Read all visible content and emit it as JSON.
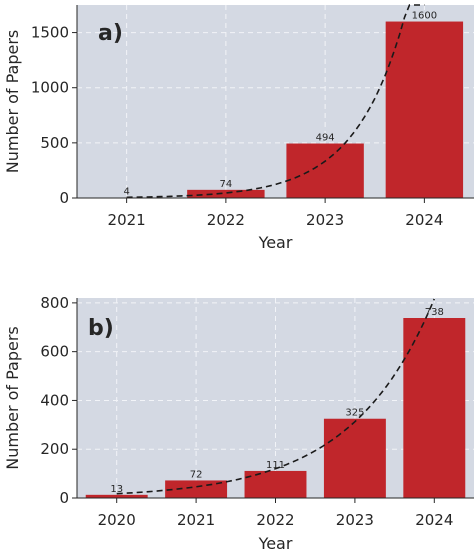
{
  "chart_data": [
    {
      "type": "bar",
      "panel_label": "a)",
      "categories": [
        "2021",
        "2022",
        "2023",
        "2024"
      ],
      "values": [
        4,
        74,
        494,
        1600
      ],
      "data_labels": [
        "4",
        "74",
        "494",
        "1600"
      ],
      "xlabel": "Year",
      "ylabel": "Number of Papers",
      "ylim": [
        0,
        1750
      ],
      "yticks": [
        "0",
        "500",
        "1000",
        "1500"
      ],
      "trendline": "exponential fit (dashed)",
      "grid": true,
      "bar_color": "#c0262b",
      "background_color": "#d4d9e3",
      "trend_color": "#1a1a1a"
    },
    {
      "type": "bar",
      "panel_label": "b)",
      "categories": [
        "2020",
        "2021",
        "2022",
        "2023",
        "2024"
      ],
      "values": [
        13,
        72,
        111,
        325,
        738
      ],
      "data_labels": [
        "13",
        "72",
        "111",
        "325",
        "738"
      ],
      "xlabel": "Year",
      "ylabel": "Number of Papers",
      "ylim": [
        0,
        820
      ],
      "yticks": [
        "0",
        "200",
        "400",
        "600",
        "800"
      ],
      "trendline": "exponential fit (dashed)",
      "grid": true,
      "bar_color": "#c0262b",
      "background_color": "#d4d9e3",
      "trend_color": "#1a1a1a"
    }
  ]
}
